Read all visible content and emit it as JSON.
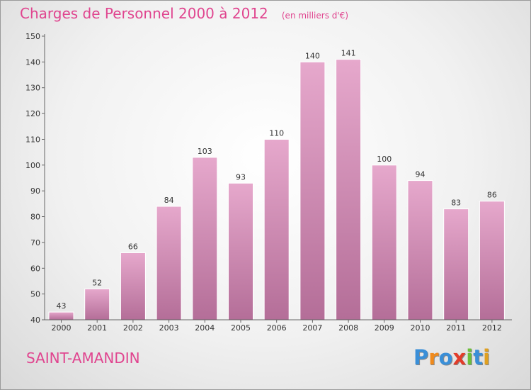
{
  "chart_data": {
    "type": "bar",
    "title": "Charges de Personnel 2000 à 2012",
    "subtitle": "(en milliers d'€)",
    "categories": [
      "2000",
      "2001",
      "2002",
      "2003",
      "2004",
      "2005",
      "2006",
      "2007",
      "2008",
      "2009",
      "2010",
      "2011",
      "2012"
    ],
    "values": [
      43,
      52,
      66,
      84,
      103,
      93,
      110,
      140,
      141,
      100,
      94,
      83,
      86
    ],
    "ylim": [
      40,
      150
    ],
    "yticks": [
      40,
      50,
      60,
      70,
      80,
      90,
      100,
      110,
      120,
      130,
      140,
      150
    ],
    "xlabel": "",
    "ylabel": "",
    "grid": false,
    "legend": "none"
  },
  "footer": {
    "place": "SAINT-AMANDIN",
    "logo_letters": [
      "P",
      "r",
      "o",
      "x",
      "i",
      "t",
      "i"
    ],
    "logo_colors": [
      "#3a8fd8",
      "#f08a1c",
      "#3a8fd8",
      "#e23c2a",
      "#6cbf3a",
      "#3a8fd8",
      "#e0a020"
    ]
  },
  "colors": {
    "accent": "#e0458f",
    "bar_top": "#e6a8cc",
    "bar_bottom": "#b46e98"
  }
}
